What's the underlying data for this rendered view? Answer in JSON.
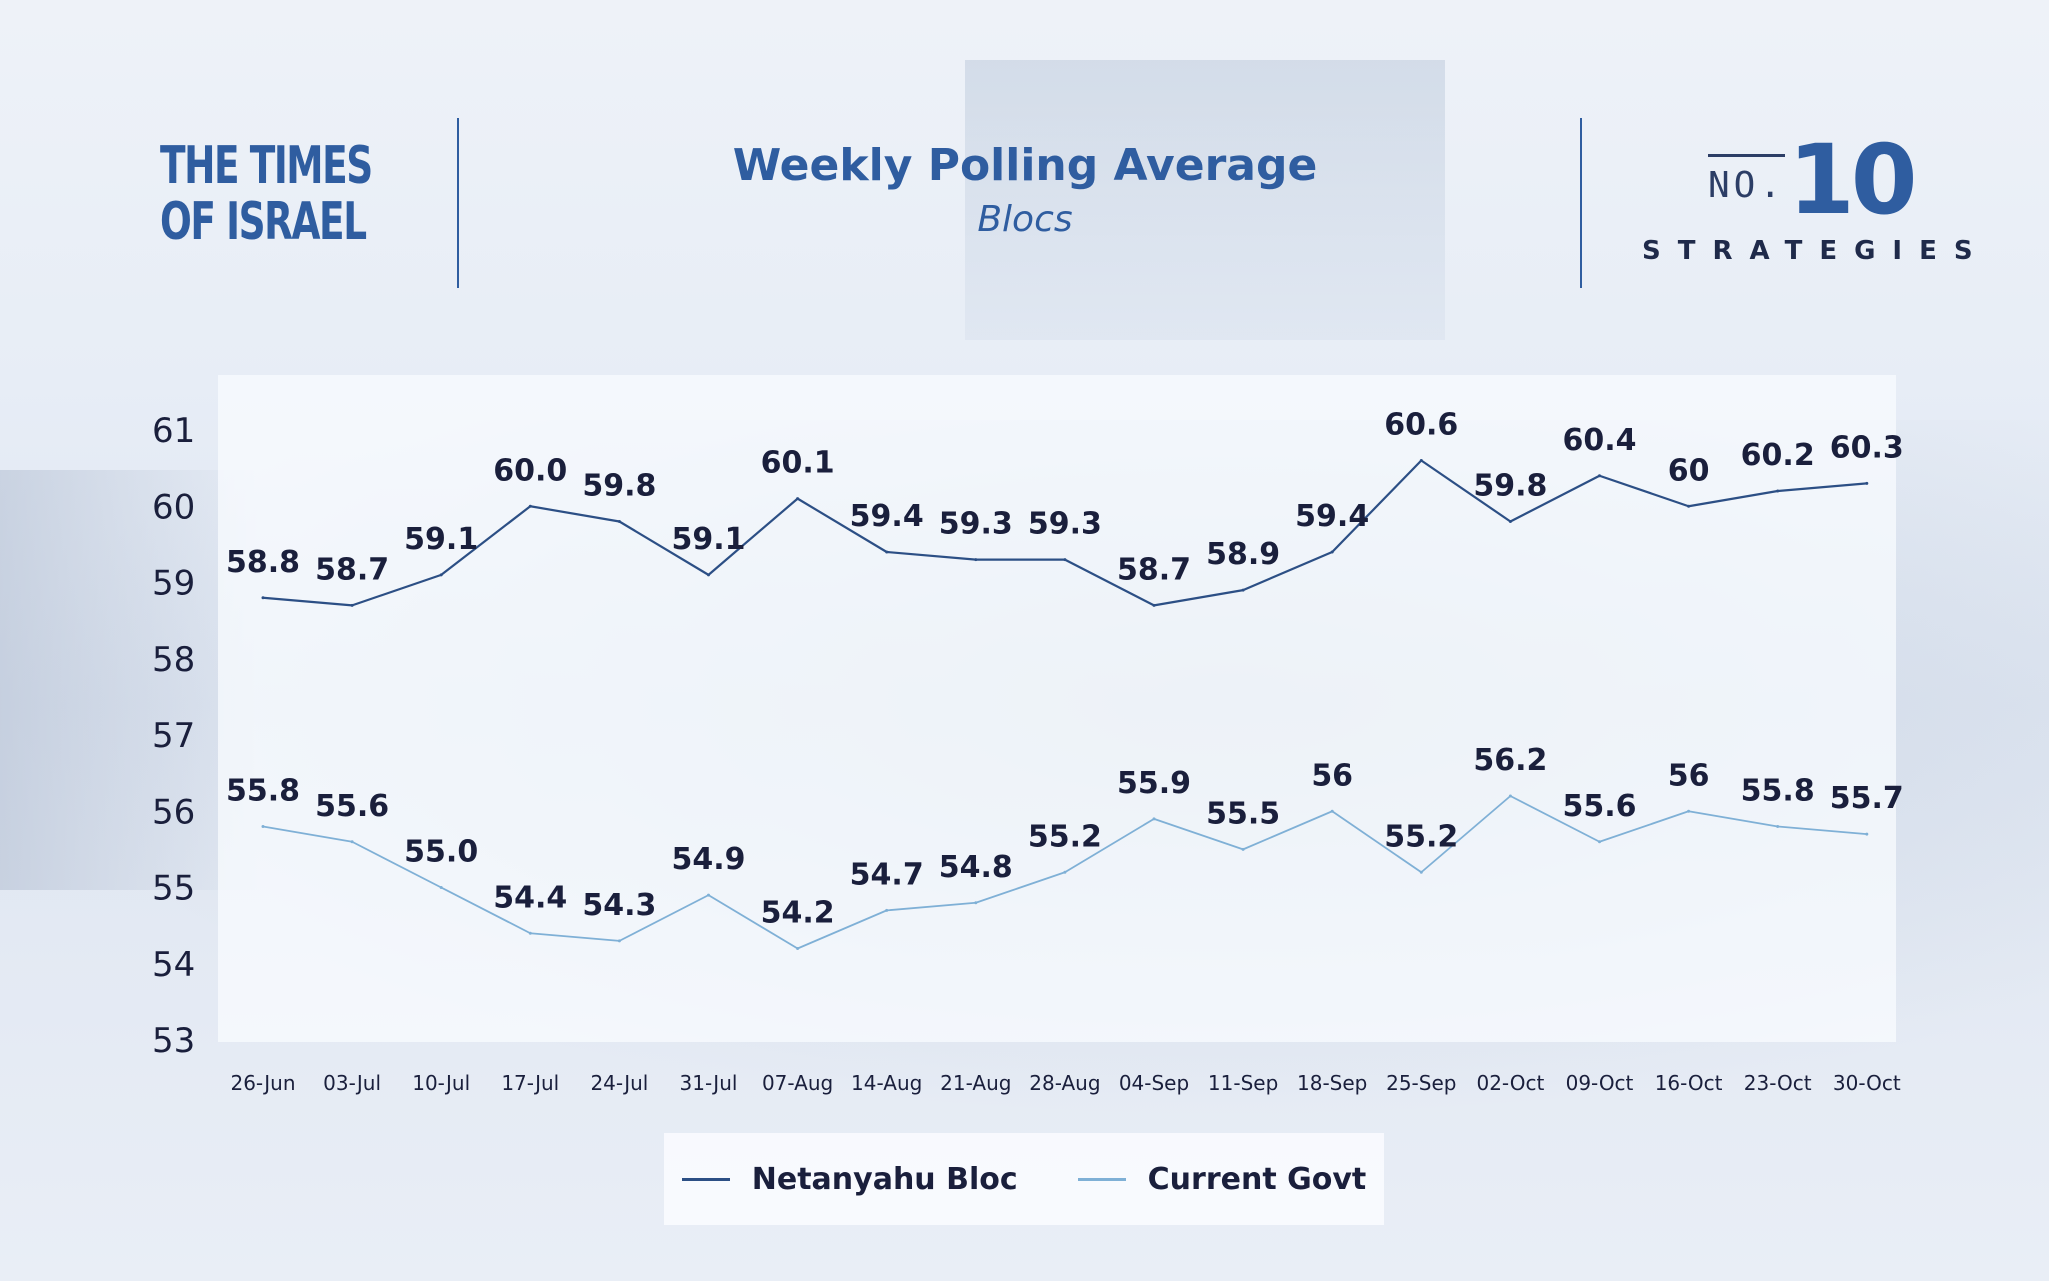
{
  "header": {
    "logo_line1": "THE TIMES",
    "logo_line2": "OF ISRAEL",
    "title": "Weekly Polling Average",
    "subtitle": "Blocs",
    "brand_no": "NO.",
    "brand_num": "10",
    "brand_word": "STRATEGIES"
  },
  "colors": {
    "accent": "#2f5da0",
    "dark_series": "#2c4f85",
    "light_series": "#7fb0d6",
    "label_text": "#1a1f3c",
    "axis_text": "#1a1f3c"
  },
  "chart_data": {
    "type": "line",
    "categories": [
      "26-Jun",
      "03-Jul",
      "10-Jul",
      "17-Jul",
      "24-Jul",
      "31-Jul",
      "07-Aug",
      "14-Aug",
      "21-Aug",
      "28-Aug",
      "04-Sep",
      "11-Sep",
      "18-Sep",
      "25-Sep",
      "02-Oct",
      "09-Oct",
      "16-Oct",
      "23-Oct",
      "30-Oct"
    ],
    "ylim": [
      53,
      61
    ],
    "yticks": [
      53,
      54,
      55,
      56,
      57,
      58,
      59,
      60,
      61
    ],
    "legend_position": "bottom",
    "grid": false,
    "series": [
      {
        "name": "Netanyahu Bloc",
        "color": "#2c4f85",
        "values": [
          58.8,
          58.7,
          59.1,
          60.0,
          59.8,
          59.1,
          60.1,
          59.4,
          59.3,
          59.3,
          58.7,
          58.9,
          59.4,
          60.6,
          59.8,
          60.4,
          60,
          60.2,
          60.3
        ],
        "labels": [
          "58.8",
          "58.7",
          "59.1",
          "60.0",
          "59.8",
          "59.1",
          "60.1",
          "59.4",
          "59.3",
          "59.3",
          "58.7",
          "58.9",
          "59.4",
          "60.6",
          "59.8",
          "60.4",
          "60",
          "60.2",
          "60.3"
        ]
      },
      {
        "name": "Current Govt",
        "color": "#7fb0d6",
        "values": [
          55.8,
          55.6,
          55.0,
          54.4,
          54.3,
          54.9,
          54.2,
          54.7,
          54.8,
          55.2,
          55.9,
          55.5,
          56,
          55.2,
          56.2,
          55.6,
          56,
          55.8,
          55.7
        ],
        "labels": [
          "55.8",
          "55.6",
          "55.0",
          "54.4",
          "54.3",
          "54.9",
          "54.2",
          "54.7",
          "54.8",
          "55.2",
          "55.9",
          "55.5",
          "56",
          "55.2",
          "56.2",
          "55.6",
          "56",
          "55.8",
          "55.7"
        ]
      }
    ]
  }
}
